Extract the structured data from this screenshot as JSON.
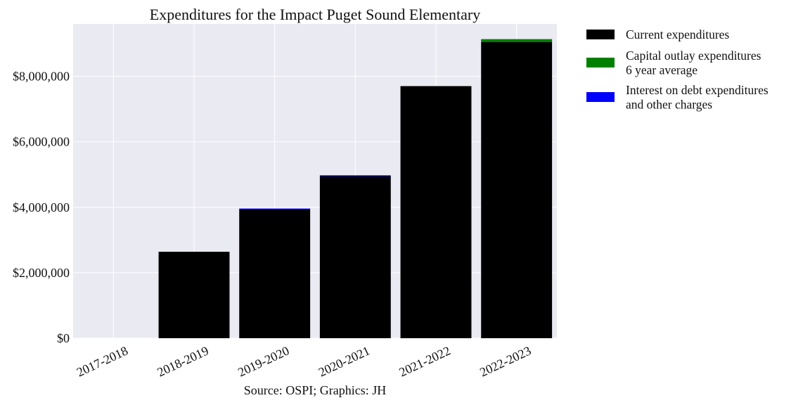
{
  "chart_data": {
    "type": "bar",
    "stacked": true,
    "title": "Expenditures for the Impact Puget Sound Elementary",
    "categories": [
      "2017-2018",
      "2018-2019",
      "2019-2020",
      "2020-2021",
      "2021-2022",
      "2022-2023"
    ],
    "series": [
      {
        "name": "Current expenditures",
        "color": "#000000",
        "values": [
          0,
          2640000,
          3930000,
          4950000,
          7700000,
          9050000
        ]
      },
      {
        "name": "Capital outlay expenditures\n6 year average",
        "color": "#008000",
        "values": [
          0,
          0,
          0,
          0,
          0,
          85000
        ]
      },
      {
        "name": "Interest on debt expenditures\nand other charges",
        "color": "#0000ff",
        "values": [
          0,
          0,
          30000,
          25000,
          0,
          0
        ]
      }
    ],
    "yticks": [
      0,
      2000000,
      4000000,
      6000000,
      8000000
    ],
    "ytick_labels": [
      "$0",
      "$2,000,000",
      "$4,000,000",
      "$6,000,000",
      "$8,000,000"
    ],
    "ylim": [
      0,
      9600000
    ],
    "grid": true,
    "legend_position": "outside-right",
    "source": "Source: OSPI; Graphics: JH"
  }
}
